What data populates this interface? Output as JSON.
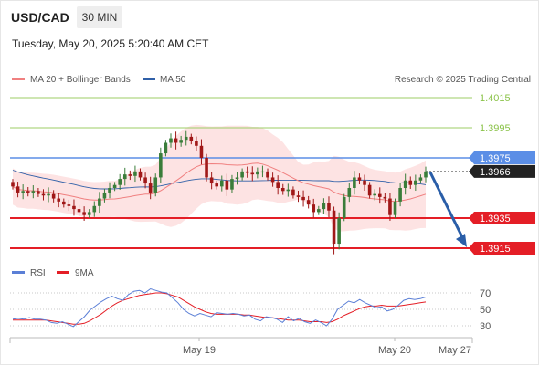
{
  "header": {
    "symbol": "USD/CAD",
    "timeframe": "30 MIN",
    "timestamp": "Tuesday, May 20, 2025 5:20:40 AM CET"
  },
  "colors": {
    "ma20": "#f08080",
    "ma50": "#3060a8",
    "bollinger_fill": "#fde0e0",
    "bull": "#3a7d3a",
    "bear": "#a01818",
    "resistance_line": "#9ccc65",
    "support_line": "#e41e26",
    "pivot_line": "#5b8ee6",
    "current_price_bg": "#222222",
    "forecast_arrow": "#2a5ea8",
    "rsi": "#5b7fd6",
    "rsi_ma": "#e41e26"
  },
  "chart_data": [
    {
      "type": "candlestick",
      "legend": [
        {
          "name": "MA 20 + Bollinger Bands",
          "color": "#f08080"
        },
        {
          "name": "MA 50",
          "color": "#3060a8"
        }
      ],
      "credit": "Research © 2025 Trading Central",
      "x_labels": [
        "May 19",
        "May 20",
        "May 27"
      ],
      "ylim": [
        1.3905,
        1.4025
      ],
      "levels": [
        {
          "label": "1.4015",
          "value": 1.4015,
          "kind": "resistance"
        },
        {
          "label": "1.3995",
          "value": 1.3995,
          "kind": "resistance"
        },
        {
          "label": "1.3975",
          "value": 1.3975,
          "kind": "pivot"
        },
        {
          "label": "1.3966",
          "value": 1.3966,
          "kind": "current"
        },
        {
          "label": "1.3935",
          "value": 1.3935,
          "kind": "support"
        },
        {
          "label": "1.3915",
          "value": 1.3915,
          "kind": "support"
        }
      ],
      "forecast": {
        "from": 1.3966,
        "to": 1.3915,
        "direction": "down"
      },
      "candles_close": [
        1.3956,
        1.3952,
        1.3953,
        1.3952,
        1.3953,
        1.3951,
        1.395,
        1.3951,
        1.3948,
        1.3946,
        1.3944,
        1.3943,
        1.3941,
        1.3939,
        1.3937,
        1.3939,
        1.3943,
        1.3948,
        1.3952,
        1.3955,
        1.3957,
        1.3961,
        1.3964,
        1.3963,
        1.3966,
        1.3962,
        1.3958,
        1.3952,
        1.3962,
        1.3978,
        1.3985,
        1.3988,
        1.3985,
        1.3987,
        1.3989,
        1.3986,
        1.3983,
        1.3975,
        1.3962,
        1.3958,
        1.3956,
        1.396,
        1.3954,
        1.3961,
        1.3962,
        1.3966,
        1.3965,
        1.3964,
        1.3966,
        1.3966,
        1.3962,
        1.3959,
        1.3955,
        1.3953,
        1.3954,
        1.395,
        1.3949,
        1.3947,
        1.3944,
        1.3939,
        1.3941,
        1.3945,
        1.394,
        1.3918,
        1.3935,
        1.3949,
        1.3955,
        1.3962,
        1.396,
        1.3957,
        1.395,
        1.3951,
        1.3949,
        1.3948,
        1.3937,
        1.3946,
        1.3955,
        1.396,
        1.3957,
        1.396,
        1.3962,
        1.3966
      ]
    },
    {
      "type": "line",
      "legend": [
        {
          "name": "RSI",
          "color": "#5b7fd6"
        },
        {
          "name": "9MA",
          "color": "#e41e26"
        }
      ],
      "y_ticks": [
        70,
        50,
        30
      ],
      "ylim": [
        20,
        80
      ],
      "series": [
        {
          "name": "RSI",
          "values": [
            38,
            39,
            38,
            40,
            38,
            38,
            37,
            34,
            33,
            35,
            32,
            29,
            35,
            41,
            49,
            54,
            59,
            63,
            66,
            63,
            61,
            68,
            72,
            73,
            70,
            75,
            73,
            71,
            70,
            64,
            58,
            50,
            45,
            42,
            45,
            43,
            41,
            46,
            45,
            44,
            45,
            44,
            42,
            43,
            38,
            36,
            41,
            40,
            38,
            34,
            41,
            36,
            39,
            35,
            33,
            37,
            34,
            30,
            38,
            50,
            55,
            60,
            58,
            62,
            58,
            55,
            52,
            53,
            48,
            50,
            55,
            61,
            63,
            62,
            63,
            65
          ]
        },
        {
          "name": "9MA",
          "values": [
            37,
            37,
            37,
            37,
            37,
            37,
            37,
            36,
            35,
            34,
            33,
            32,
            32,
            33,
            36,
            40,
            44,
            49,
            54,
            58,
            61,
            63,
            65,
            67,
            68,
            69,
            70,
            70,
            69,
            67,
            65,
            61,
            57,
            53,
            50,
            47,
            45,
            44,
            44,
            44,
            44,
            44,
            43,
            43,
            42,
            41,
            40,
            40,
            39,
            38,
            37,
            37,
            37,
            36,
            35,
            35,
            35,
            34,
            35,
            38,
            42,
            45,
            48,
            51,
            53,
            54,
            54,
            55,
            54,
            54,
            54,
            55,
            56,
            57,
            58,
            59
          ]
        }
      ]
    }
  ]
}
